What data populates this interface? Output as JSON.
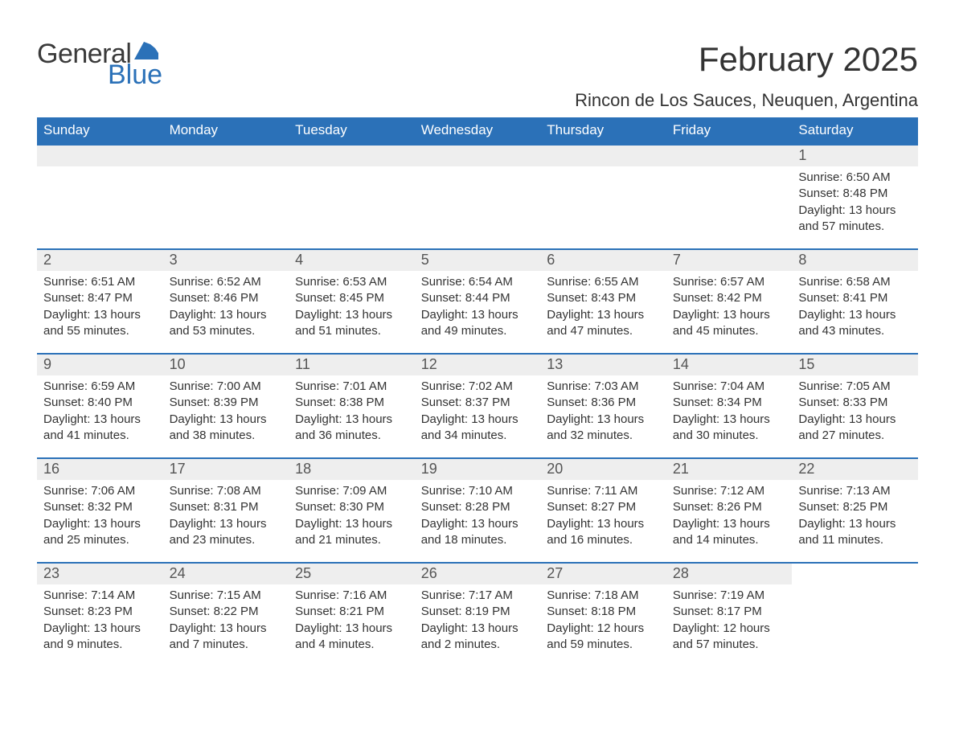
{
  "logo": {
    "general": "General",
    "blue": "Blue",
    "accent_color": "#2b71b8"
  },
  "header": {
    "month_title": "February 2025",
    "location": "Rincon de Los Sauces, Neuquen, Argentina"
  },
  "calendar": {
    "days_of_week": [
      "Sunday",
      "Monday",
      "Tuesday",
      "Wednesday",
      "Thursday",
      "Friday",
      "Saturday"
    ],
    "header_bg": "#2b71b8",
    "header_fg": "#ffffff",
    "daynum_bg": "#eeeeee",
    "week_border": "#2b71b8",
    "text_color": "#333333",
    "weeks": [
      [
        {
          "blank": true
        },
        {
          "blank": true
        },
        {
          "blank": true
        },
        {
          "blank": true
        },
        {
          "blank": true
        },
        {
          "blank": true
        },
        {
          "day": "1",
          "sunrise": "Sunrise: 6:50 AM",
          "sunset": "Sunset: 8:48 PM",
          "daylight": "Daylight: 13 hours and 57 minutes."
        }
      ],
      [
        {
          "day": "2",
          "sunrise": "Sunrise: 6:51 AM",
          "sunset": "Sunset: 8:47 PM",
          "daylight": "Daylight: 13 hours and 55 minutes."
        },
        {
          "day": "3",
          "sunrise": "Sunrise: 6:52 AM",
          "sunset": "Sunset: 8:46 PM",
          "daylight": "Daylight: 13 hours and 53 minutes."
        },
        {
          "day": "4",
          "sunrise": "Sunrise: 6:53 AM",
          "sunset": "Sunset: 8:45 PM",
          "daylight": "Daylight: 13 hours and 51 minutes."
        },
        {
          "day": "5",
          "sunrise": "Sunrise: 6:54 AM",
          "sunset": "Sunset: 8:44 PM",
          "daylight": "Daylight: 13 hours and 49 minutes."
        },
        {
          "day": "6",
          "sunrise": "Sunrise: 6:55 AM",
          "sunset": "Sunset: 8:43 PM",
          "daylight": "Daylight: 13 hours and 47 minutes."
        },
        {
          "day": "7",
          "sunrise": "Sunrise: 6:57 AM",
          "sunset": "Sunset: 8:42 PM",
          "daylight": "Daylight: 13 hours and 45 minutes."
        },
        {
          "day": "8",
          "sunrise": "Sunrise: 6:58 AM",
          "sunset": "Sunset: 8:41 PM",
          "daylight": "Daylight: 13 hours and 43 minutes."
        }
      ],
      [
        {
          "day": "9",
          "sunrise": "Sunrise: 6:59 AM",
          "sunset": "Sunset: 8:40 PM",
          "daylight": "Daylight: 13 hours and 41 minutes."
        },
        {
          "day": "10",
          "sunrise": "Sunrise: 7:00 AM",
          "sunset": "Sunset: 8:39 PM",
          "daylight": "Daylight: 13 hours and 38 minutes."
        },
        {
          "day": "11",
          "sunrise": "Sunrise: 7:01 AM",
          "sunset": "Sunset: 8:38 PM",
          "daylight": "Daylight: 13 hours and 36 minutes."
        },
        {
          "day": "12",
          "sunrise": "Sunrise: 7:02 AM",
          "sunset": "Sunset: 8:37 PM",
          "daylight": "Daylight: 13 hours and 34 minutes."
        },
        {
          "day": "13",
          "sunrise": "Sunrise: 7:03 AM",
          "sunset": "Sunset: 8:36 PM",
          "daylight": "Daylight: 13 hours and 32 minutes."
        },
        {
          "day": "14",
          "sunrise": "Sunrise: 7:04 AM",
          "sunset": "Sunset: 8:34 PM",
          "daylight": "Daylight: 13 hours and 30 minutes."
        },
        {
          "day": "15",
          "sunrise": "Sunrise: 7:05 AM",
          "sunset": "Sunset: 8:33 PM",
          "daylight": "Daylight: 13 hours and 27 minutes."
        }
      ],
      [
        {
          "day": "16",
          "sunrise": "Sunrise: 7:06 AM",
          "sunset": "Sunset: 8:32 PM",
          "daylight": "Daylight: 13 hours and 25 minutes."
        },
        {
          "day": "17",
          "sunrise": "Sunrise: 7:08 AM",
          "sunset": "Sunset: 8:31 PM",
          "daylight": "Daylight: 13 hours and 23 minutes."
        },
        {
          "day": "18",
          "sunrise": "Sunrise: 7:09 AM",
          "sunset": "Sunset: 8:30 PM",
          "daylight": "Daylight: 13 hours and 21 minutes."
        },
        {
          "day": "19",
          "sunrise": "Sunrise: 7:10 AM",
          "sunset": "Sunset: 8:28 PM",
          "daylight": "Daylight: 13 hours and 18 minutes."
        },
        {
          "day": "20",
          "sunrise": "Sunrise: 7:11 AM",
          "sunset": "Sunset: 8:27 PM",
          "daylight": "Daylight: 13 hours and 16 minutes."
        },
        {
          "day": "21",
          "sunrise": "Sunrise: 7:12 AM",
          "sunset": "Sunset: 8:26 PM",
          "daylight": "Daylight: 13 hours and 14 minutes."
        },
        {
          "day": "22",
          "sunrise": "Sunrise: 7:13 AM",
          "sunset": "Sunset: 8:25 PM",
          "daylight": "Daylight: 13 hours and 11 minutes."
        }
      ],
      [
        {
          "day": "23",
          "sunrise": "Sunrise: 7:14 AM",
          "sunset": "Sunset: 8:23 PM",
          "daylight": "Daylight: 13 hours and 9 minutes."
        },
        {
          "day": "24",
          "sunrise": "Sunrise: 7:15 AM",
          "sunset": "Sunset: 8:22 PM",
          "daylight": "Daylight: 13 hours and 7 minutes."
        },
        {
          "day": "25",
          "sunrise": "Sunrise: 7:16 AM",
          "sunset": "Sunset: 8:21 PM",
          "daylight": "Daylight: 13 hours and 4 minutes."
        },
        {
          "day": "26",
          "sunrise": "Sunrise: 7:17 AM",
          "sunset": "Sunset: 8:19 PM",
          "daylight": "Daylight: 13 hours and 2 minutes."
        },
        {
          "day": "27",
          "sunrise": "Sunrise: 7:18 AM",
          "sunset": "Sunset: 8:18 PM",
          "daylight": "Daylight: 12 hours and 59 minutes."
        },
        {
          "day": "28",
          "sunrise": "Sunrise: 7:19 AM",
          "sunset": "Sunset: 8:17 PM",
          "daylight": "Daylight: 12 hours and 57 minutes."
        },
        {
          "blank": true,
          "no_bar": true
        }
      ]
    ]
  }
}
